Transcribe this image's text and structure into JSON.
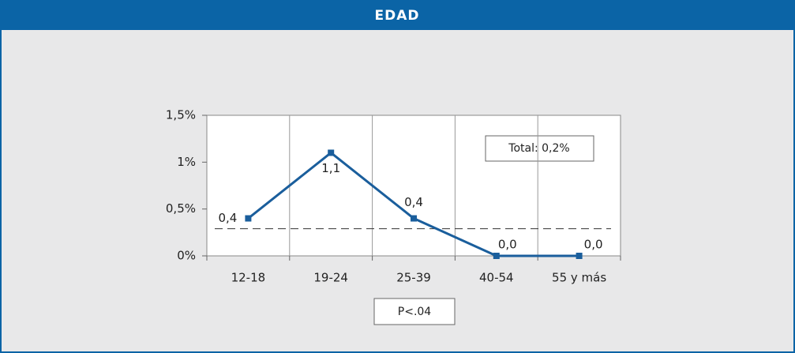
{
  "chart_data": {
    "type": "line",
    "title": "EDAD",
    "categories": [
      "12-18",
      "19-24",
      "25-39",
      "40-54",
      "55 y más"
    ],
    "values": [
      0.4,
      1.1,
      0.4,
      0.0,
      0.0
    ],
    "value_labels": [
      "0,4",
      "1,1",
      "0,4",
      "0,0",
      "0,0"
    ],
    "color": "#1a5e9c",
    "ylim": [
      0,
      1.5
    ],
    "yticks": [
      {
        "value": 0,
        "label": "0%"
      },
      {
        "value": 0.5,
        "label": "0,5%"
      },
      {
        "value": 1,
        "label": "1%"
      },
      {
        "value": 1.5,
        "label": "1,5%"
      }
    ],
    "grid": true,
    "reference_line": 0.29,
    "annotations": [
      "Total: 0,2%",
      "P<.04"
    ]
  }
}
